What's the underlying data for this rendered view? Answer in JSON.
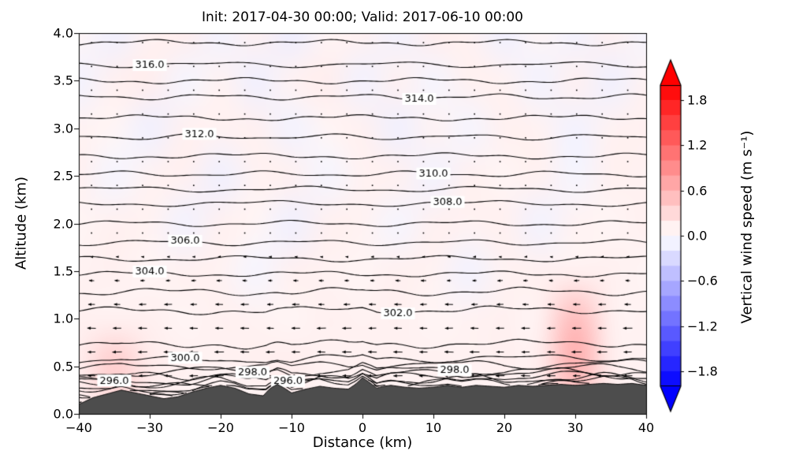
{
  "chart_data": {
    "type": "heatmap",
    "title": "Init: 2017-04-30 00:00; Valid: 2017-06-10 00:00",
    "init_time": "2017-04-30 00:00",
    "valid_time": "2017-06-10 00:00",
    "xlabel": "Distance (km)",
    "ylabel": "Altitude (km)",
    "xlim": [
      -40,
      40
    ],
    "ylim": [
      0,
      4
    ],
    "grid": false,
    "x_ticks": {
      "values": [
        -40,
        -30,
        -20,
        -10,
        0,
        10,
        20,
        30,
        40
      ],
      "labels": [
        "−40",
        "−30",
        "−20",
        "−10",
        "0",
        "10",
        "20",
        "30",
        "40"
      ]
    },
    "y_ticks": {
      "values": [
        0,
        0.5,
        1,
        1.5,
        2,
        2.5,
        3,
        3.5,
        4
      ],
      "labels": [
        "0.0",
        "0.5",
        "1.0",
        "1.5",
        "2.0",
        "2.5",
        "3.0",
        "3.5",
        "4.0"
      ]
    },
    "colorbar": {
      "label": "Vertical wind speed (m s⁻¹)",
      "tick_values": [
        1.8,
        1.2,
        0.6,
        0.0,
        -0.6,
        -1.2,
        -1.8
      ],
      "tick_labels": [
        "1.8",
        "1.2",
        "0.6",
        "0.0",
        "−0.6",
        "−1.2",
        "−1.8"
      ],
      "vmin": -2.0,
      "vmax": 2.0,
      "band_step": 0.2,
      "colormap": "bwr",
      "extend": "both",
      "color_positive": "#ff0000",
      "color_negative": "#0000ff"
    },
    "field": {
      "name": "vertical wind speed (m/s), shaded",
      "x": [
        -40,
        -35,
        -30,
        -25,
        -20,
        -15,
        -10,
        -5,
        0,
        5,
        10,
        15,
        20,
        25,
        30,
        35,
        40
      ],
      "z": [
        4.0,
        3.5,
        3.0,
        2.5,
        2.0,
        1.5,
        1.0,
        0.5,
        0.0
      ],
      "values": [
        [
          0.08,
          -0.12,
          0.1,
          0.14,
          -0.1,
          0.12,
          -0.14,
          0.08,
          0.12,
          -0.1,
          0.14,
          0.1,
          -0.12,
          0.08,
          -0.1,
          0.12,
          -0.08
        ],
        [
          -0.1,
          0.12,
          0.14,
          -0.08,
          0.1,
          -0.12,
          0.1,
          0.14,
          -0.1,
          0.12,
          -0.08,
          0.12,
          0.1,
          -0.1,
          0.12,
          -0.12,
          0.1
        ],
        [
          0.1,
          0.08,
          -0.12,
          0.12,
          0.1,
          0.12,
          -0.1,
          0.08,
          0.12,
          -0.12,
          0.1,
          -0.08,
          0.12,
          0.1,
          -0.1,
          0.1,
          0.12
        ],
        [
          0.12,
          -0.08,
          0.1,
          0.12,
          -0.12,
          0.1,
          0.12,
          -0.08,
          0.1,
          0.12,
          -0.1,
          0.12,
          0.08,
          0.12,
          -0.08,
          0.12,
          0.1
        ],
        [
          0.08,
          0.12,
          0.1,
          -0.1,
          0.12,
          0.08,
          -0.12,
          0.12,
          0.1,
          -0.08,
          0.12,
          0.1,
          0.12,
          -0.1,
          0.1,
          0.08,
          0.12
        ],
        [
          0.1,
          0.12,
          0.08,
          0.12,
          0.1,
          -0.08,
          0.12,
          0.1,
          0.08,
          0.12,
          0.1,
          -0.1,
          0.1,
          0.12,
          0.1,
          0.12,
          0.08
        ],
        [
          0.12,
          0.1,
          0.12,
          0.08,
          0.12,
          0.1,
          0.08,
          0.12,
          0.1,
          0.12,
          0.08,
          0.1,
          0.12,
          0.1,
          0.55,
          0.12,
          0.1
        ],
        [
          0.14,
          0.42,
          0.16,
          0.12,
          0.1,
          0.12,
          0.14,
          0.1,
          0.12,
          0.1,
          0.12,
          0.1,
          0.12,
          0.14,
          0.65,
          0.14,
          0.1
        ],
        [
          0.1,
          0.18,
          0.12,
          0.08,
          0.1,
          0.08,
          0.1,
          0.08,
          0.1,
          0.1,
          0.08,
          0.1,
          0.08,
          0.1,
          0.22,
          0.1,
          0.08
        ]
      ]
    },
    "contours": {
      "name": "potential temperature (K)",
      "interval": 1.0,
      "label_format": "%.1f",
      "levels": [
        {
          "level": 290,
          "altitude": 0.16,
          "labels": []
        },
        {
          "level": 291,
          "altitude": 0.19,
          "labels": []
        },
        {
          "level": 292,
          "altitude": 0.22,
          "labels": []
        },
        {
          "level": 293,
          "altitude": 0.25,
          "labels": []
        },
        {
          "level": 294,
          "altitude": 0.28,
          "labels": []
        },
        {
          "level": 295,
          "altitude": 0.31,
          "labels": []
        },
        {
          "level": 296,
          "altitude": 0.34,
          "labels": [
            -35,
            -10.5
          ]
        },
        {
          "level": 297,
          "altitude": 0.385,
          "labels": []
        },
        {
          "level": 298,
          "altitude": 0.43,
          "labels": [
            -15.5,
            13
          ]
        },
        {
          "level": 299,
          "altitude": 0.49,
          "labels": []
        },
        {
          "level": 300,
          "altitude": 0.56,
          "labels": [
            -25
          ]
        },
        {
          "level": 301,
          "altitude": 0.72,
          "labels": []
        },
        {
          "level": 302,
          "altitude": 1.08,
          "labels": [
            5
          ]
        },
        {
          "level": 303,
          "altitude": 1.28,
          "labels": []
        },
        {
          "level": 304,
          "altitude": 1.47,
          "labels": [
            -30
          ]
        },
        {
          "level": 305,
          "altitude": 1.63,
          "labels": []
        },
        {
          "level": 306,
          "altitude": 1.8,
          "labels": [
            -25
          ]
        },
        {
          "level": 307,
          "altitude": 2.0,
          "labels": []
        },
        {
          "level": 308,
          "altitude": 2.21,
          "labels": [
            12
          ]
        },
        {
          "level": 309,
          "altitude": 2.36,
          "labels": []
        },
        {
          "level": 310,
          "altitude": 2.52,
          "labels": [
            10
          ]
        },
        {
          "level": 311,
          "altitude": 2.71,
          "labels": []
        },
        {
          "level": 312,
          "altitude": 2.91,
          "labels": [
            -23
          ]
        },
        {
          "level": 313,
          "altitude": 3.11,
          "labels": []
        },
        {
          "level": 314,
          "altitude": 3.33,
          "labels": [
            8
          ]
        },
        {
          "level": 315,
          "altitude": 3.5,
          "labels": []
        },
        {
          "level": 316,
          "altitude": 3.67,
          "labels": [
            -30
          ]
        },
        {
          "level": 317,
          "altitude": 3.9,
          "labels": []
        }
      ]
    },
    "terrain": {
      "color": "#4d4d4d",
      "profile": [
        [
          -40,
          0.1
        ],
        [
          -38,
          0.17
        ],
        [
          -36,
          0.21
        ],
        [
          -34,
          0.25
        ],
        [
          -32,
          0.22
        ],
        [
          -30,
          0.19
        ],
        [
          -28,
          0.16
        ],
        [
          -26,
          0.18
        ],
        [
          -24,
          0.23
        ],
        [
          -22,
          0.27
        ],
        [
          -20,
          0.3
        ],
        [
          -18,
          0.27
        ],
        [
          -16,
          0.21
        ],
        [
          -14,
          0.19
        ],
        [
          -13,
          0.27
        ],
        [
          -12,
          0.31
        ],
        [
          -11,
          0.27
        ],
        [
          -10,
          0.22
        ],
        [
          -8,
          0.26
        ],
        [
          -6,
          0.29
        ],
        [
          -4,
          0.27
        ],
        [
          -2,
          0.26
        ],
        [
          -1,
          0.31
        ],
        [
          0,
          0.38
        ],
        [
          1,
          0.33
        ],
        [
          2,
          0.27
        ],
        [
          3,
          0.29
        ],
        [
          4,
          0.3
        ],
        [
          6,
          0.28
        ],
        [
          8,
          0.27
        ],
        [
          10,
          0.28
        ],
        [
          12,
          0.3
        ],
        [
          14,
          0.28
        ],
        [
          16,
          0.3
        ],
        [
          18,
          0.29
        ],
        [
          20,
          0.28
        ],
        [
          22,
          0.3
        ],
        [
          24,
          0.29
        ],
        [
          26,
          0.3
        ],
        [
          28,
          0.31
        ],
        [
          30,
          0.3
        ],
        [
          32,
          0.31
        ],
        [
          34,
          0.32
        ],
        [
          36,
          0.31
        ],
        [
          38,
          0.32
        ],
        [
          40,
          0.3
        ]
      ]
    },
    "wind": {
      "arrow_color": "#000000",
      "dx_km": 3.6,
      "dz_km": 0.25,
      "profile_z_u": [
        [
          0.2,
          -7.5
        ],
        [
          0.5,
          -8.5
        ],
        [
          0.8,
          -8.0
        ],
        [
          1.1,
          -7.0
        ],
        [
          1.4,
          -4.5
        ],
        [
          1.7,
          -1.8
        ],
        [
          2.1,
          -0.8
        ],
        [
          2.6,
          -0.5
        ],
        [
          3.2,
          -0.4
        ],
        [
          4.0,
          -0.4
        ]
      ]
    }
  }
}
